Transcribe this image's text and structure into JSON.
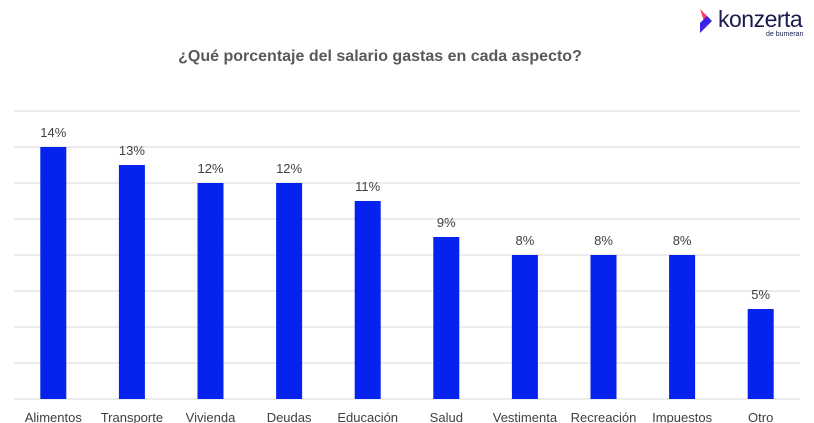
{
  "brand": {
    "name": "konzerta",
    "tagline": "de bumeran",
    "colors": {
      "chevron_a": "#ff3b5c",
      "chevron_b": "#3d22e8",
      "text": "#1a1c4e"
    }
  },
  "chart_data": {
    "type": "bar",
    "title": "¿Qué porcentaje del salario gastas en cada aspecto?",
    "categories": [
      "Alimentos",
      "Transporte",
      "Vivienda",
      "Deudas",
      "Educación",
      "Salud",
      "Vestimenta",
      "Recreación",
      "Impuestos",
      "Otro"
    ],
    "values": [
      14,
      13,
      12,
      12,
      11,
      9,
      8,
      8,
      8,
      5
    ],
    "value_labels": [
      "14%",
      "13%",
      "12%",
      "12%",
      "11%",
      "9%",
      "8%",
      "8%",
      "8%",
      "5%"
    ],
    "ylim": [
      0,
      16
    ],
    "y_gridline_step": 2,
    "grid": true,
    "y_axis_labels_shown": false,
    "bar_color": "#0622ee",
    "grid_color": "#d9d9d9"
  }
}
